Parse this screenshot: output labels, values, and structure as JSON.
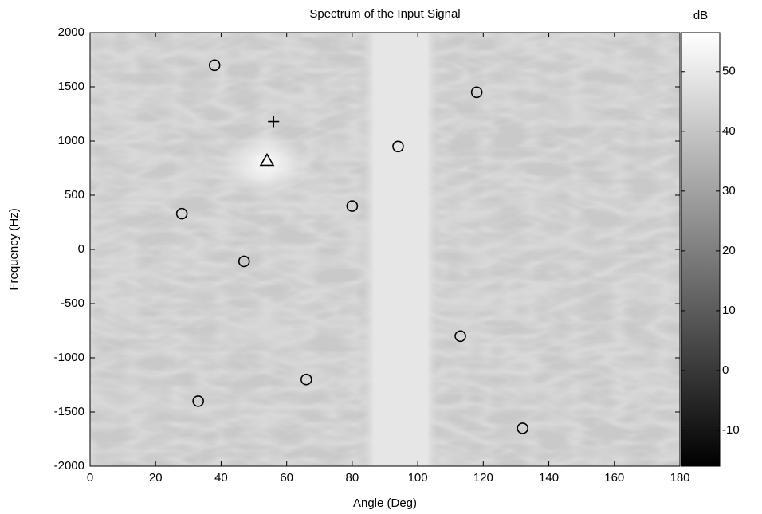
{
  "chart_data": {
    "type": "heatmap",
    "title": "Spectrum of the Input Signal",
    "xlabel": "Angle (Deg)",
    "ylabel": "Frequency (Hz)",
    "xlim": [
      0,
      180
    ],
    "ylim": [
      -2000,
      2000
    ],
    "xticks": [
      0,
      20,
      40,
      60,
      80,
      100,
      120,
      140,
      160,
      180
    ],
    "yticks": [
      -2000,
      -1500,
      -1000,
      -500,
      0,
      500,
      1000,
      1500,
      2000
    ],
    "colormap": [
      "#000000",
      "#ffffff"
    ],
    "colorbar": {
      "label": "dB",
      "lim": [
        -16,
        56.5
      ],
      "ticks": [
        -10,
        0,
        10,
        20,
        30,
        40,
        50
      ]
    },
    "markers": [
      {
        "shape": "circle",
        "color": "#000000",
        "x": [
          38,
          118,
          94,
          28,
          80,
          47,
          113,
          66,
          33,
          132
        ],
        "y": [
          1700,
          1450,
          950,
          330,
          400,
          -110,
          -800,
          -1200,
          -1400,
          -1650
        ]
      },
      {
        "shape": "plus",
        "color": "#000000",
        "x": [
          56
        ],
        "y": [
          1180
        ]
      },
      {
        "shape": "triangle",
        "color": "#000000",
        "x": [
          54
        ],
        "y": [
          820
        ]
      }
    ]
  }
}
